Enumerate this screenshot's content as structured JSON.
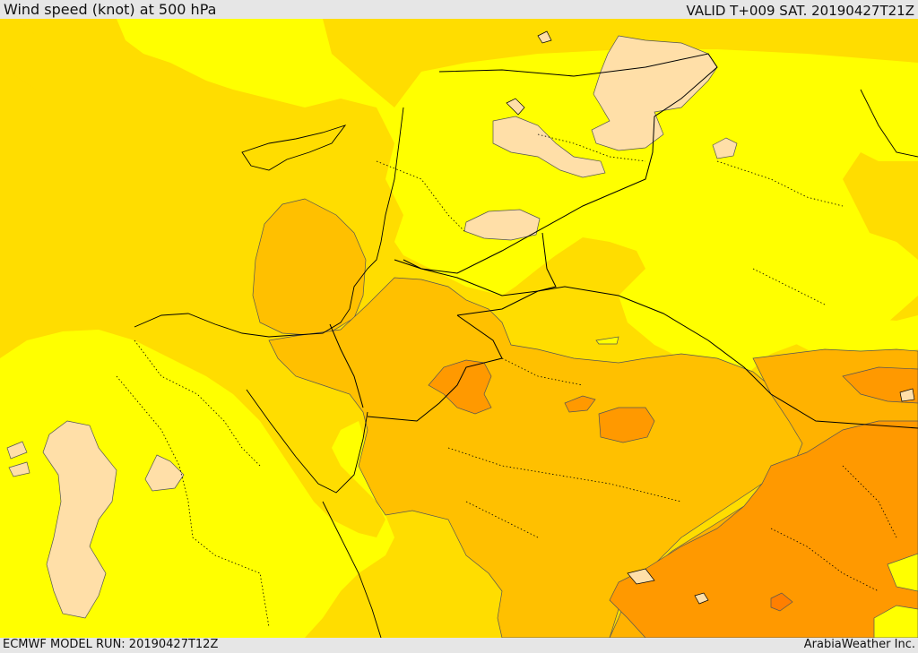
{
  "header": {
    "title": "Wind speed (knot) at 500 hPa",
    "valid": "VALID T+009 SAT. 20190427T21Z"
  },
  "footer": {
    "model_run": "ECMWF MODEL RUN: 20190427T12Z",
    "credit": "ArabiaWeather Inc."
  },
  "map": {
    "fill_colors": {
      "lightest": "#ffdfa8",
      "yellow": "#ffff00",
      "gold": "#ffdd00",
      "amber": "#ffc000",
      "orange_light": "#ffb200",
      "orange": "#ff9900",
      "orange_dark": "#ff7f00"
    },
    "line_colors": {
      "border": "#000000",
      "contour": "#555555"
    }
  }
}
